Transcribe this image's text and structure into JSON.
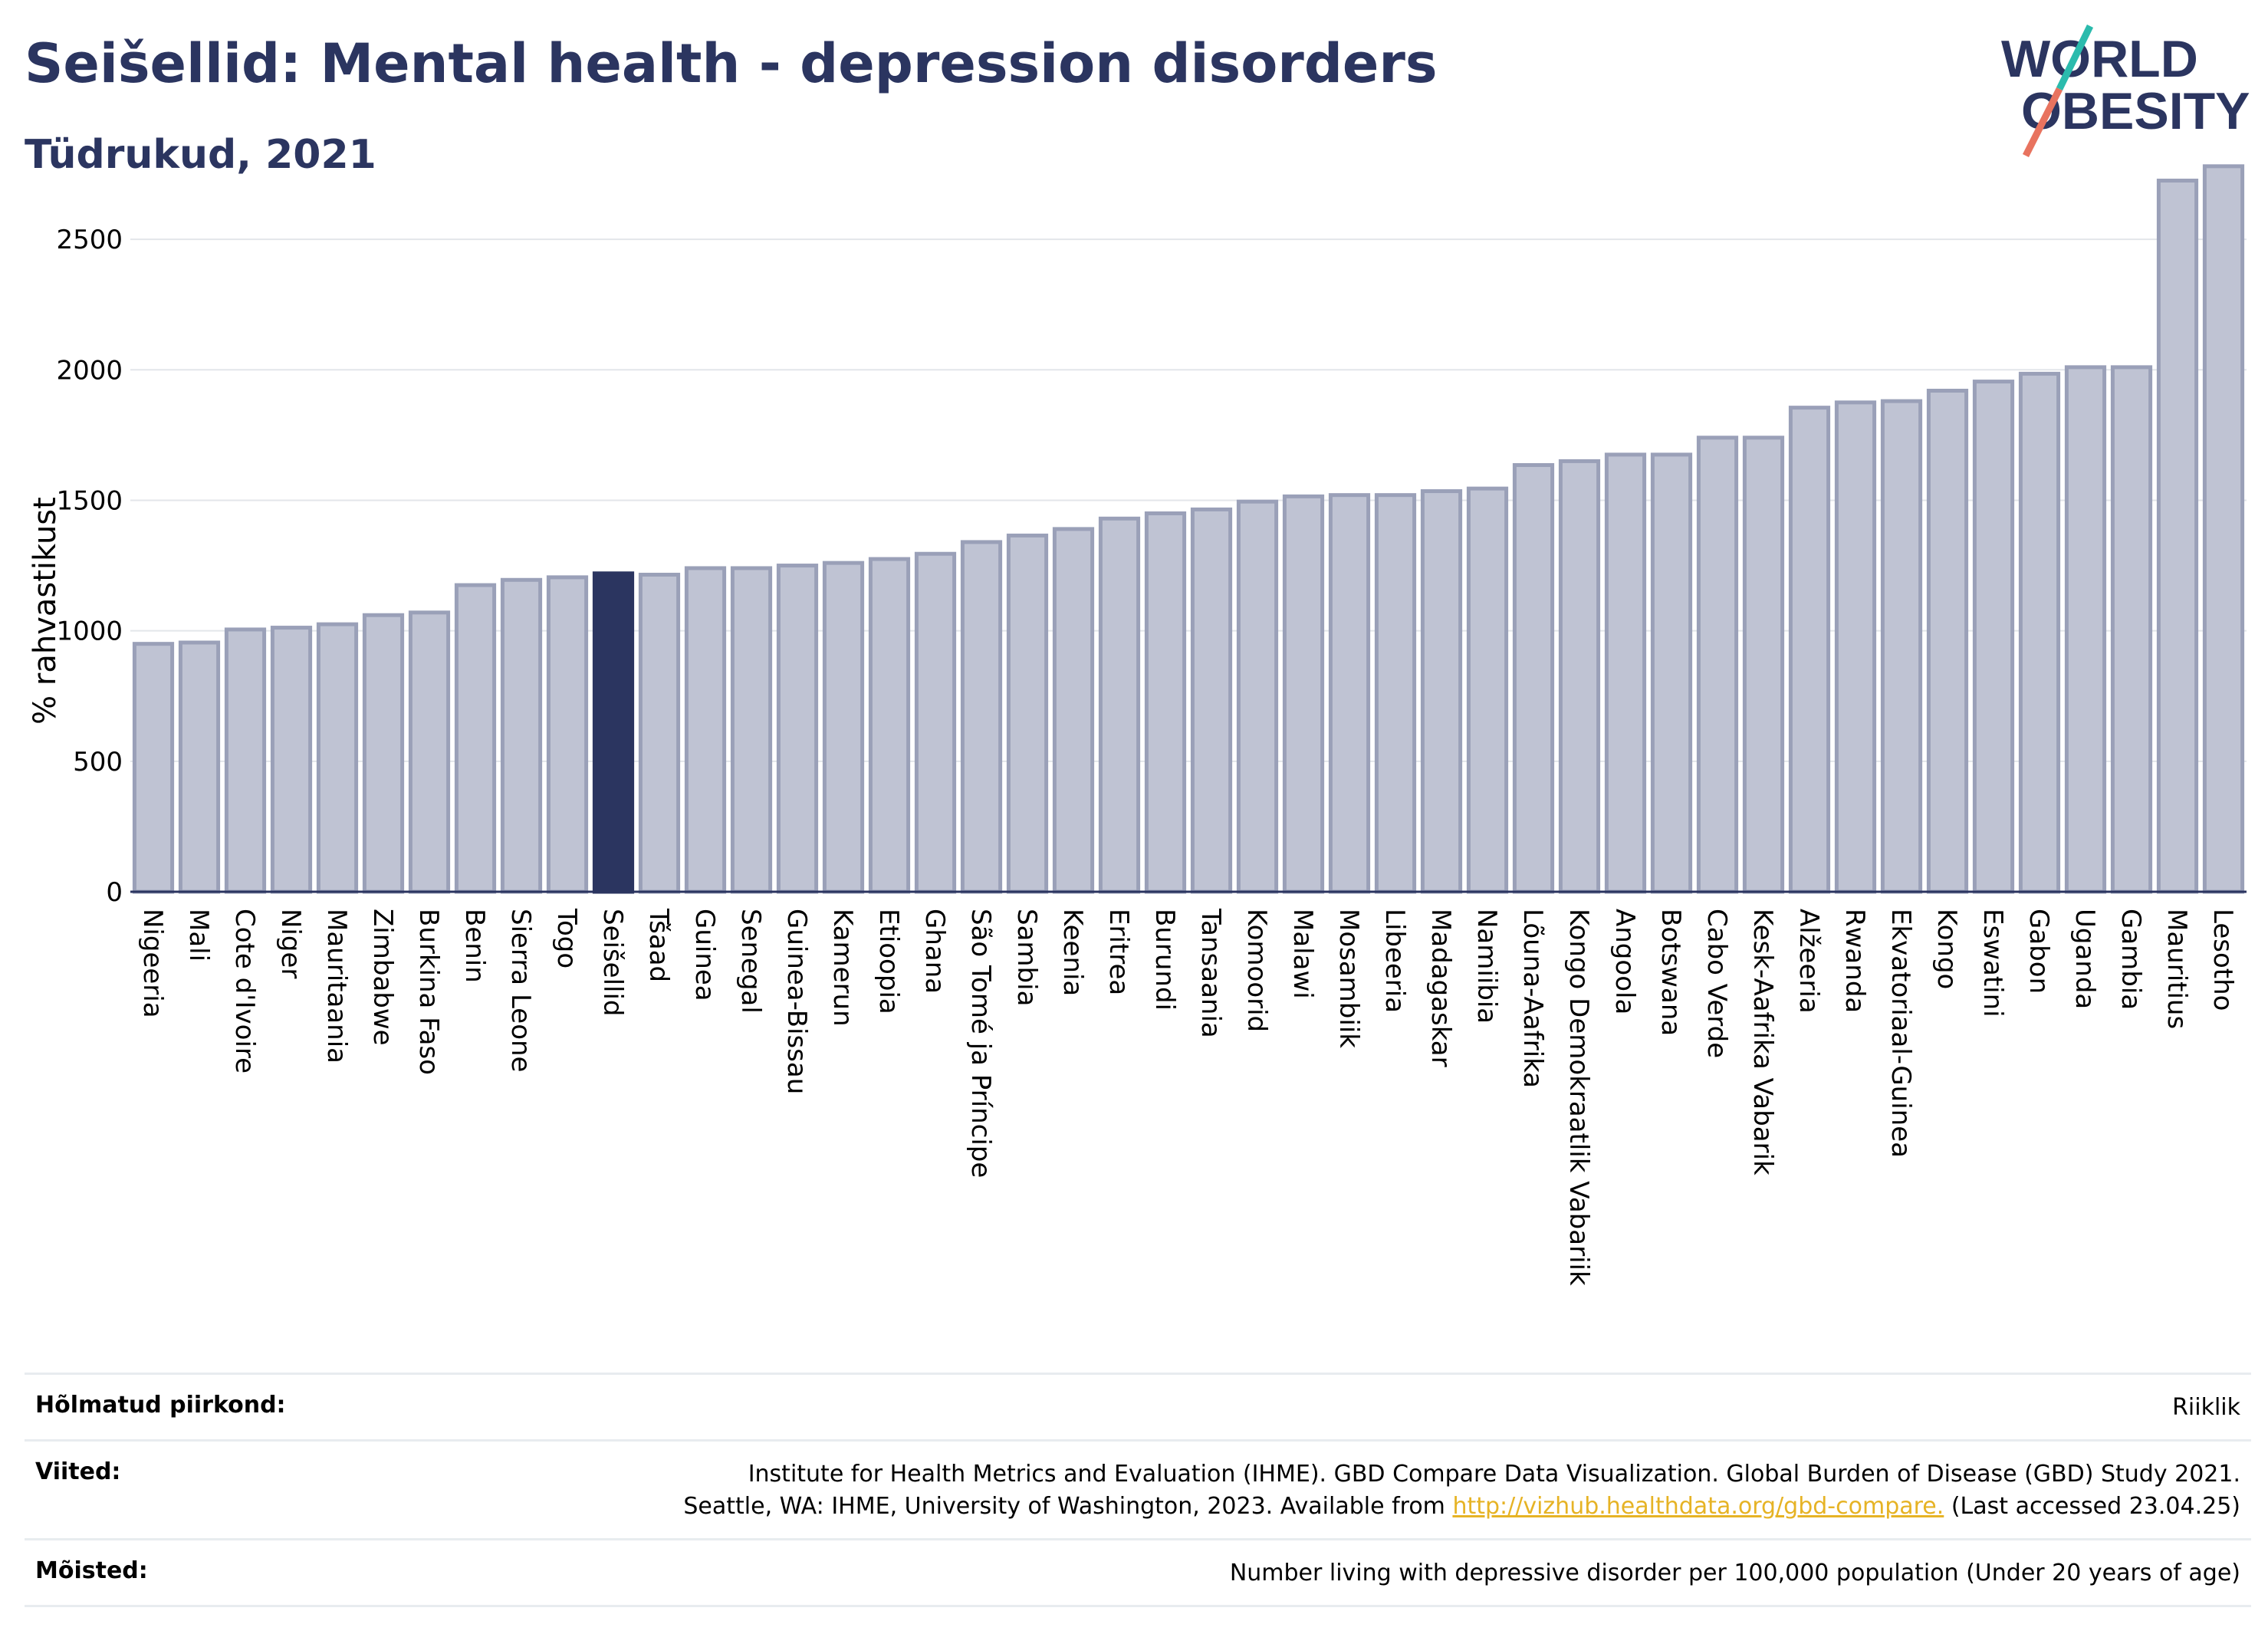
{
  "header": {
    "title": "Seišellid: Mental health - depression disorders",
    "subtitle": "Tüdrukud, 2021"
  },
  "logo": {
    "line1": "WORLD",
    "line2": "OBESITY"
  },
  "colors": {
    "highlight": "#2b3560",
    "bar": "#bfc3d3",
    "bar_edge": "#9aa0b8",
    "accent_teal": "#2bbbad",
    "accent_red": "#e8735f"
  },
  "chart_data": {
    "type": "bar",
    "ylabel": "% rahvastikust",
    "ylim": [
      0,
      2800
    ],
    "yticks": [
      0,
      500,
      1000,
      1500,
      2000,
      2500
    ],
    "grid": true,
    "highlight": "Seišellid",
    "categories": [
      "Nigeeria",
      "Mali",
      "Cote d'Ivoire",
      "Niger",
      "Mauritaania",
      "Zimbabwe",
      "Burkina Faso",
      "Benin",
      "Sierra Leone",
      "Togo",
      "Seišellid",
      "Tšaad",
      "Guinea",
      "Senegal",
      "Guinea-Bissau",
      "Kamerun",
      "Etioopia",
      "Ghana",
      "São Tomé ja Príncipe",
      "Sambia",
      "Keenia",
      "Eritrea",
      "Burundi",
      "Tansaania",
      "Komoorid",
      "Malawi",
      "Mosambiik",
      "Libeeria",
      "Madagaskar",
      "Namiibia",
      "Lõuna-Aafrika",
      "Kongo Demokraatlik Vabariik",
      "Angoola",
      "Botswana",
      "Cabo Verde",
      "Kesk-Aafrika Vabarik",
      "Alžeeria",
      "Rwanda",
      "Ekvatoriaal-Guinea",
      "Kongo",
      "Eswatini",
      "Gabon",
      "Uganda",
      "Gambia",
      "Mauritius",
      "Lesotho"
    ],
    "values": [
      950,
      955,
      1005,
      1012,
      1025,
      1060,
      1070,
      1175,
      1195,
      1205,
      1220,
      1215,
      1240,
      1240,
      1250,
      1260,
      1275,
      1295,
      1340,
      1365,
      1390,
      1430,
      1450,
      1465,
      1495,
      1515,
      1520,
      1520,
      1535,
      1545,
      1635,
      1650,
      1675,
      1675,
      1740,
      1740,
      1855,
      1875,
      1880,
      1920,
      1955,
      1985,
      2010,
      2010,
      2725,
      2780
    ]
  },
  "footer": {
    "rows": [
      {
        "key": "Hõlmatud piirkond:",
        "value": "Riiklik"
      },
      {
        "key": "Viited:",
        "line1": "Institute for Health Metrics and Evaluation (IHME). GBD Compare Data Visualization. Global Burden of Disease (GBD) Study 2021.",
        "line2_pre": "Seattle, WA: IHME, University of Washington, 2023. Available from ",
        "link": "http://vizhub.healthdata.org/gbd-compare.",
        "line2_post": " (Last accessed 23.04.25)"
      },
      {
        "key": "Mõisted:",
        "value": "Number living with depressive disorder per 100,000 population (Under 20 years of age)"
      }
    ]
  }
}
